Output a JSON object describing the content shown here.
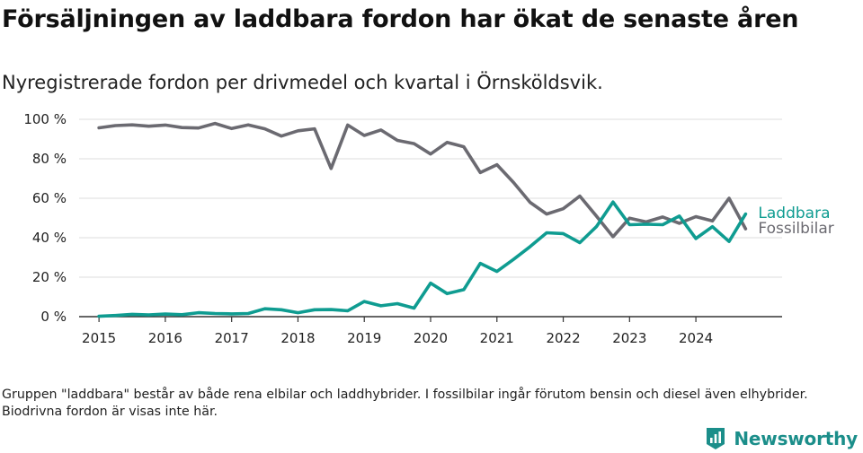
{
  "title": "Försäljningen av laddbara fordon har ökat de senaste åren",
  "subtitle": "Nyregistrerade fordon per drivmedel och kvartal i Örnsköldsvik.",
  "footnote": "Gruppen \"laddbara\" består av både rena elbilar och laddhybrider. I fossilbilar ingår förutom bensin och diesel även elhybrider. Biodrivna fordon är visas inte här.",
  "brand": {
    "name": "Newsworthy",
    "logo_icon": "newsworthy-logo-icon"
  },
  "colors": {
    "laddbara": "#0f9c91",
    "fossilbilar": "#6b6a71",
    "grid": "#dedede",
    "axis": "#333333",
    "brand": "#1b8e8a"
  },
  "chart_data": {
    "type": "line",
    "title": "Försäljningen av laddbara fordon har ökat de senaste åren",
    "xlabel": "",
    "ylabel": "",
    "ylim": [
      0,
      100
    ],
    "y_ticks": [
      0,
      20,
      40,
      60,
      80,
      100
    ],
    "y_tick_labels": [
      "0 %",
      "20 %",
      "40 %",
      "60 %",
      "80 %",
      "100 %"
    ],
    "x_ticks": [
      2015,
      2016,
      2017,
      2018,
      2019,
      2020,
      2021,
      2022,
      2023,
      2024
    ],
    "x_tick_labels": [
      "2015",
      "2016",
      "2017",
      "2018",
      "2019",
      "2020",
      "2021",
      "2022",
      "2023",
      "2024"
    ],
    "x_range": [
      2014.7,
      2025.3
    ],
    "x": [
      2015.0,
      2015.25,
      2015.5,
      2015.75,
      2016.0,
      2016.25,
      2016.5,
      2016.75,
      2017.0,
      2017.25,
      2017.5,
      2017.75,
      2018.0,
      2018.25,
      2018.5,
      2018.75,
      2019.0,
      2019.25,
      2019.5,
      2019.75,
      2020.0,
      2020.25,
      2020.5,
      2020.75,
      2021.0,
      2021.25,
      2021.5,
      2021.75,
      2022.0,
      2022.25,
      2022.5,
      2022.75,
      2023.0,
      2023.25,
      2023.5,
      2023.75,
      2024.0,
      2024.25,
      2024.5,
      2024.75
    ],
    "series": [
      {
        "name": "Fossilbilar",
        "label": "Fossilbilar",
        "values": [
          95.7,
          96.8,
          97.2,
          96.5,
          97.1,
          95.8,
          95.6,
          97.9,
          95.3,
          97.2,
          95.2,
          91.5,
          94.2,
          95.2,
          75.1,
          97.1,
          91.8,
          94.6,
          89.3,
          87.7,
          82.4,
          88.3,
          86.1,
          73.0,
          77.0,
          68.0,
          57.9,
          52.0,
          54.7,
          61.1,
          51.0,
          40.5,
          49.9,
          48.0,
          50.5,
          47.3,
          50.7,
          48.5,
          60.0,
          44.5
        ]
      },
      {
        "name": "Laddbara",
        "label": "Laddbara",
        "values": [
          0.2,
          0.6,
          1.2,
          0.9,
          1.3,
          1.0,
          2.0,
          1.6,
          1.4,
          1.6,
          4.0,
          3.5,
          2.0,
          3.5,
          3.6,
          3.0,
          7.7,
          5.5,
          6.6,
          4.3,
          17.0,
          11.7,
          13.7,
          27.0,
          22.9,
          29.0,
          35.5,
          42.5,
          42.1,
          37.5,
          45.6,
          58.1,
          46.6,
          46.8,
          46.6,
          51.0,
          39.6,
          45.6,
          38.1,
          52.0
        ]
      }
    ],
    "legend": "inline-right"
  }
}
